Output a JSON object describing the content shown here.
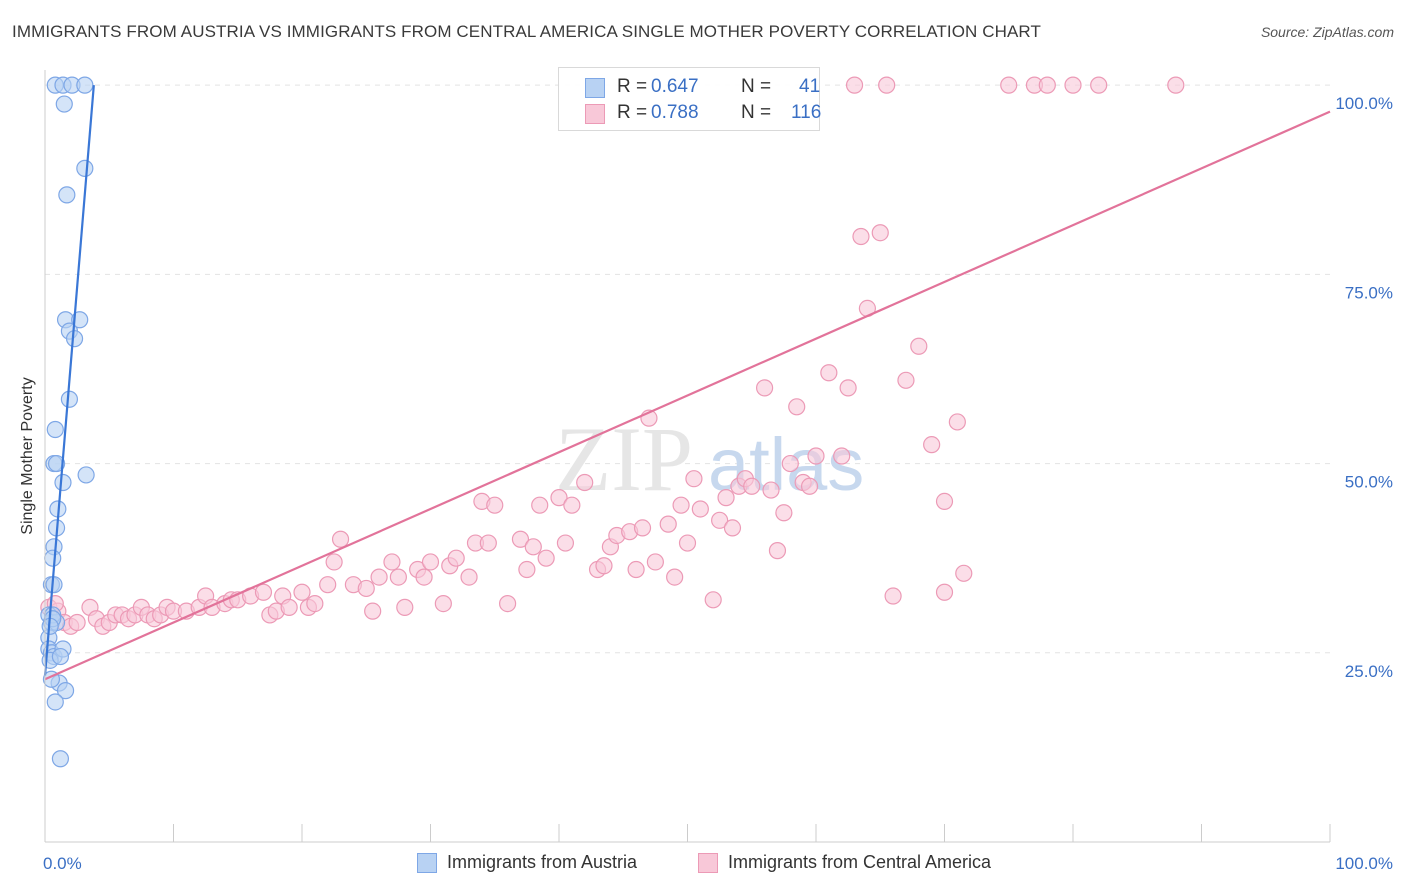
{
  "header": {
    "title": "IMMIGRANTS FROM AUSTRIA VS IMMIGRANTS FROM CENTRAL AMERICA SINGLE MOTHER POVERTY CORRELATION CHART",
    "source": "Source: ZipAtlas.com"
  },
  "watermark": {
    "zip": "ZIP",
    "atlas": "atlas"
  },
  "colors": {
    "blue": "#3a77d6",
    "blue_fill": "#b8d2f3",
    "blue_stroke": "#7ea7e6",
    "pink": "#e2739a",
    "pink_fill": "#f8c8d8",
    "pink_stroke": "#ec9ab6",
    "axis_text": "#3a6fc4",
    "grid": "#e3e3e3"
  },
  "legend_stats": [
    {
      "r_label": "R =",
      "r_value": "0.647",
      "n_label": "N =",
      "n_value": "41"
    },
    {
      "r_label": "R =",
      "r_value": "0.788",
      "n_label": "N =",
      "n_value": "116"
    }
  ],
  "chart_data": {
    "type": "scatter",
    "title": "IMMIGRANTS FROM AUSTRIA VS IMMIGRANTS FROM CENTRAL AMERICA SINGLE MOTHER POVERTY CORRELATION CHART",
    "xlabel": "",
    "ylabel": "Single Mother Poverty",
    "xlim": [
      0,
      100
    ],
    "ylim": [
      0,
      102
    ],
    "x_tick_labels": [
      "0.0%",
      "100.0%"
    ],
    "y_tick_values": [
      25,
      50,
      75,
      100
    ],
    "y_tick_labels": [
      "25.0%",
      "50.0%",
      "75.0%",
      "100.0%"
    ],
    "grid": true,
    "legend_position": "bottom",
    "series": [
      {
        "name": "Immigrants from Austria",
        "color": "#3a77d6",
        "r": 0.647,
        "n": 41,
        "trend": {
          "x": [
            0.0,
            3.8
          ],
          "y": [
            22,
            100
          ]
        },
        "points": [
          [
            0.8,
            100
          ],
          [
            1.4,
            100
          ],
          [
            2.1,
            100
          ],
          [
            3.1,
            100
          ],
          [
            1.5,
            97.5
          ],
          [
            3.1,
            89
          ],
          [
            1.7,
            85.5
          ],
          [
            1.6,
            69
          ],
          [
            1.9,
            67.5
          ],
          [
            2.7,
            69
          ],
          [
            2.3,
            66.5
          ],
          [
            1.9,
            58.5
          ],
          [
            0.8,
            54.5
          ],
          [
            0.7,
            50
          ],
          [
            0.9,
            50
          ],
          [
            3.2,
            48.5
          ],
          [
            1.4,
            47.5
          ],
          [
            1.0,
            44
          ],
          [
            0.9,
            41.5
          ],
          [
            0.7,
            39
          ],
          [
            0.6,
            37.5
          ],
          [
            0.5,
            34
          ],
          [
            0.7,
            34
          ],
          [
            0.3,
            30
          ],
          [
            0.5,
            29
          ],
          [
            0.9,
            29
          ],
          [
            0.6,
            30
          ],
          [
            0.3,
            27
          ],
          [
            0.3,
            25.5
          ],
          [
            0.5,
            25
          ],
          [
            0.7,
            24.5
          ],
          [
            0.4,
            24
          ],
          [
            1.4,
            25.5
          ],
          [
            1.2,
            24.5
          ],
          [
            1.1,
            21
          ],
          [
            0.5,
            21.5
          ],
          [
            1.6,
            20
          ],
          [
            0.8,
            18.5
          ],
          [
            1.2,
            11
          ],
          [
            0.6,
            29.5
          ],
          [
            0.4,
            28.5
          ]
        ]
      },
      {
        "name": "Immigrants from Central America",
        "color": "#e2739a",
        "r": 0.788,
        "n": 116,
        "trend": {
          "x": [
            0.0,
            100.0
          ],
          "y": [
            21.5,
            96.5
          ]
        },
        "points": [
          [
            0.3,
            31
          ],
          [
            0.6,
            29.5
          ],
          [
            1.0,
            30.5
          ],
          [
            1.5,
            29
          ],
          [
            2.0,
            28.5
          ],
          [
            2.5,
            29
          ],
          [
            3.5,
            31
          ],
          [
            4.0,
            29.5
          ],
          [
            4.5,
            28.5
          ],
          [
            5.0,
            29
          ],
          [
            5.5,
            30
          ],
          [
            6.0,
            30
          ],
          [
            6.5,
            29.5
          ],
          [
            7.0,
            30
          ],
          [
            7.5,
            31
          ],
          [
            8.0,
            30
          ],
          [
            8.5,
            29.5
          ],
          [
            9.0,
            30
          ],
          [
            9.5,
            31
          ],
          [
            10.0,
            30.5
          ],
          [
            11.0,
            30.5
          ],
          [
            12.0,
            31
          ],
          [
            12.5,
            32.5
          ],
          [
            13.0,
            31
          ],
          [
            14.0,
            31.5
          ],
          [
            14.5,
            32
          ],
          [
            15.0,
            32
          ],
          [
            16.0,
            32.5
          ],
          [
            17.0,
            33
          ],
          [
            17.5,
            30
          ],
          [
            18.0,
            30.5
          ],
          [
            18.5,
            32.5
          ],
          [
            19.0,
            31
          ],
          [
            20.0,
            33
          ],
          [
            20.5,
            31
          ],
          [
            21.0,
            31.5
          ],
          [
            22.0,
            34
          ],
          [
            22.5,
            37
          ],
          [
            23.0,
            40
          ],
          [
            24.0,
            34
          ],
          [
            25.0,
            33.5
          ],
          [
            25.5,
            30.5
          ],
          [
            26.0,
            35
          ],
          [
            27.0,
            37
          ],
          [
            27.5,
            35
          ],
          [
            28.0,
            31
          ],
          [
            29.0,
            36
          ],
          [
            29.5,
            35
          ],
          [
            30.0,
            37
          ],
          [
            31.0,
            31.5
          ],
          [
            31.5,
            36.5
          ],
          [
            32.0,
            37.5
          ],
          [
            33.0,
            35
          ],
          [
            33.5,
            39.5
          ],
          [
            34.0,
            45
          ],
          [
            34.5,
            39.5
          ],
          [
            35.0,
            44.5
          ],
          [
            36.0,
            31.5
          ],
          [
            37.0,
            40
          ],
          [
            37.5,
            36
          ],
          [
            38.0,
            39
          ],
          [
            38.5,
            44.5
          ],
          [
            39.0,
            37.5
          ],
          [
            40.0,
            45.5
          ],
          [
            40.5,
            39.5
          ],
          [
            41.0,
            44.5
          ],
          [
            42.0,
            47.5
          ],
          [
            43.0,
            36
          ],
          [
            43.5,
            36.5
          ],
          [
            44.0,
            39
          ],
          [
            44.5,
            40.5
          ],
          [
            45.5,
            41
          ],
          [
            46.0,
            36
          ],
          [
            46.5,
            41.5
          ],
          [
            47.0,
            56
          ],
          [
            47.5,
            37
          ],
          [
            48.5,
            42
          ],
          [
            49.0,
            35
          ],
          [
            49.5,
            44.5
          ],
          [
            50.0,
            39.5
          ],
          [
            50.5,
            48
          ],
          [
            51.0,
            44
          ],
          [
            52.0,
            32
          ],
          [
            52.5,
            42.5
          ],
          [
            53.0,
            45.5
          ],
          [
            53.5,
            41.5
          ],
          [
            54.0,
            47
          ],
          [
            54.5,
            48
          ],
          [
            55.0,
            47
          ],
          [
            56.0,
            60
          ],
          [
            56.5,
            46.5
          ],
          [
            57.0,
            38.5
          ],
          [
            57.5,
            43.5
          ],
          [
            58.0,
            50
          ],
          [
            58.5,
            57.5
          ],
          [
            59.0,
            47.5
          ],
          [
            59.5,
            47
          ],
          [
            60.0,
            51
          ],
          [
            61.0,
            62
          ],
          [
            62.0,
            51
          ],
          [
            62.5,
            60
          ],
          [
            63.5,
            80
          ],
          [
            64.0,
            70.5
          ],
          [
            65.0,
            80.5
          ],
          [
            66.0,
            32.5
          ],
          [
            67.0,
            61
          ],
          [
            68.0,
            65.5
          ],
          [
            69.0,
            52.5
          ],
          [
            70.0,
            33
          ],
          [
            71.0,
            55.5
          ],
          [
            71.5,
            35.5
          ],
          [
            75.0,
            100
          ],
          [
            77.0,
            100
          ],
          [
            78.0,
            100
          ],
          [
            80.0,
            100
          ],
          [
            82.0,
            100
          ],
          [
            88.0,
            100
          ],
          [
            63.0,
            100
          ],
          [
            65.5,
            100
          ],
          [
            70.0,
            45
          ],
          [
            0.8,
            31.5
          ]
        ]
      }
    ]
  }
}
